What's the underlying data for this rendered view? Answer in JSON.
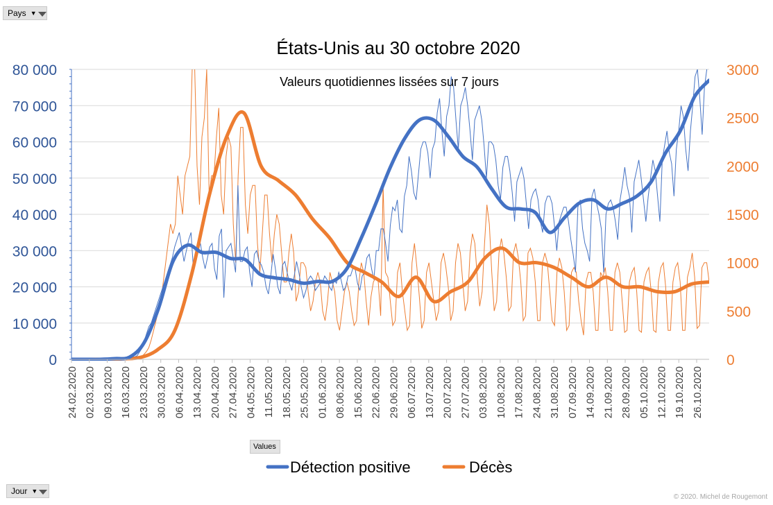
{
  "filters": {
    "pays_label": "Pays",
    "jour_label": "Jour",
    "values_label": "Values",
    "filter_icon": "funnel-icon",
    "dropdown_icon": "dropdown-arrow-icon"
  },
  "copyright": "© 2020.  Michel de Rougemont",
  "colors": {
    "detection": "#4472c4",
    "deces": "#ed7d31",
    "left_axis_text": "#2f5597",
    "right_axis_text": "#ed7d31",
    "grid": "#d9d9d9"
  },
  "chart_data": {
    "type": "line",
    "title": "États-Unis au 30 octobre 2020",
    "subtitle": "Valeurs quotidiennes lissées sur 7 jours",
    "x_tick_labels": [
      "24.02.2020",
      "02.03.2020",
      "09.03.2020",
      "16.03.2020",
      "23.03.2020",
      "30.03.2020",
      "06.04.2020",
      "13.04.2020",
      "20.04.2020",
      "27.04.2020",
      "04.05.2020",
      "11.05.2020",
      "18.05.2020",
      "25.05.2020",
      "01.06.2020",
      "08.06.2020",
      "15.06.2020",
      "22.06.2020",
      "29.06.2020",
      "06.07.2020",
      "13.07.2020",
      "20.07.2020",
      "27.07.2020",
      "03.08.2020",
      "10.08.2020",
      "17.08.2020",
      "24.08.2020",
      "31.08.2020",
      "07.09.2020",
      "14.09.2020",
      "21.09.2020",
      "28.09.2020",
      "05.10.2020",
      "12.10.2020",
      "19.10.2020",
      "26.10.2020"
    ],
    "y_left": {
      "ylim": [
        0,
        80000
      ],
      "ticks": [
        "0",
        "10 000",
        "20 000",
        "30 000",
        "40 000",
        "50 000",
        "60 000",
        "70 000",
        "80 000"
      ]
    },
    "y_right": {
      "ylim": [
        0,
        3000
      ],
      "ticks": [
        "0",
        "500",
        "1000",
        "1500",
        "2000",
        "2500",
        "3000"
      ]
    },
    "grid": true,
    "legend": {
      "placement": "bottom",
      "entries": [
        "Détection positive",
        "Décès"
      ]
    },
    "series": [
      {
        "name": "Détection positive",
        "axis": "left",
        "smoothed_weekly": [
          0,
          0,
          0,
          200,
          600,
          4500,
          14000,
          27000,
          31500,
          29500,
          29500,
          27800,
          27500,
          23500,
          22500,
          22000,
          21000,
          21500,
          21500,
          25000,
          33500,
          43000,
          53000,
          61000,
          66000,
          66000,
          61500,
          56000,
          53000,
          47000,
          42000,
          41500,
          40500,
          35000,
          39000,
          43000,
          44000,
          41500,
          43000,
          45000,
          49000,
          57000,
          63000,
          72500,
          77000
        ],
        "daily_raw": [
          0,
          0,
          0,
          0,
          0,
          0,
          0,
          0,
          0,
          0,
          0,
          0,
          0,
          0,
          0,
          0,
          0,
          0,
          0,
          0,
          0,
          0,
          0,
          0,
          100,
          300,
          500,
          700,
          1000,
          2000,
          3000,
          5000,
          7000,
          9000,
          10000,
          12000,
          14000,
          16000,
          18000,
          20000,
          22000,
          24000,
          26000,
          28000,
          31000,
          33000,
          35000,
          31000,
          27000,
          30000,
          33000,
          35000,
          25000,
          27000,
          30000,
          32000,
          28000,
          25000,
          28000,
          31000,
          32000,
          25000,
          22000,
          34000,
          36000,
          17000,
          30000,
          31000,
          32000,
          28000,
          24000,
          48000,
          27000,
          27000,
          30000,
          31000,
          24000,
          20000,
          29000,
          30000,
          27000,
          26000,
          24000,
          20000,
          18000,
          23000,
          29000,
          25000,
          20000,
          18000,
          26000,
          27000,
          24000,
          21000,
          19000,
          23000,
          27000,
          24000,
          20000,
          17000,
          19000,
          22000,
          23000,
          22000,
          19000,
          20000,
          21000,
          21000,
          23000,
          22000,
          20000,
          19000,
          22000,
          21000,
          24000,
          22000,
          19000,
          20000,
          23000,
          23000,
          25000,
          25000,
          21000,
          19000,
          23000,
          24000,
          28000,
          29000,
          25000,
          22000,
          30000,
          30000,
          36000,
          36000,
          32000,
          27000,
          37000,
          42000,
          41000,
          44000,
          36000,
          35000,
          45000,
          48000,
          56000,
          52000,
          46000,
          44000,
          51000,
          58000,
          60000,
          60000,
          57000,
          50000,
          58000,
          60000,
          68000,
          72000,
          63000,
          56000,
          67000,
          70000,
          78000,
          75000,
          66000,
          58000,
          70000,
          72000,
          75000,
          70000,
          63000,
          55000,
          66000,
          68000,
          70000,
          66000,
          59000,
          50000,
          60000,
          60000,
          59000,
          55000,
          48000,
          44000,
          53000,
          56000,
          56000,
          52000,
          46000,
          38000,
          49000,
          51000,
          53000,
          50000,
          43000,
          36000,
          44000,
          46000,
          47000,
          44000,
          38000,
          35000,
          43000,
          45000,
          45000,
          43000,
          37000,
          30000,
          38000,
          40000,
          42000,
          42000,
          38000,
          33000,
          29000,
          24000,
          42000,
          44000,
          36000,
          32000,
          30000,
          27000,
          45000,
          47000,
          43000,
          40000,
          36000,
          24000,
          40000,
          43000,
          44000,
          42000,
          38000,
          33000,
          44000,
          48000,
          53000,
          48000,
          45000,
          35000,
          49000,
          52000,
          55000,
          50000,
          44000,
          38000,
          45000,
          50000,
          55000,
          52000,
          45000,
          38000,
          55000,
          59000,
          63000,
          57000,
          54000,
          45000,
          58000,
          63000,
          70000,
          67000,
          58000,
          52000,
          63000,
          70000,
          78000,
          80000,
          72000,
          62000,
          75000,
          80000,
          85000
        ]
      },
      {
        "name": "Décès",
        "axis": "right",
        "smoothed_weekly": [
          0,
          0,
          0,
          5,
          20,
          100,
          300,
          900,
          1700,
          2300,
          2550,
          2000,
          1850,
          1700,
          1450,
          1250,
          1000,
          900,
          800,
          650,
          850,
          600,
          700,
          800,
          1050,
          1150,
          1000,
          1000,
          950,
          850,
          750,
          850,
          750,
          750,
          700,
          700,
          780,
          800
        ],
        "daily_raw": [
          0,
          0,
          0,
          0,
          0,
          0,
          0,
          0,
          0,
          0,
          0,
          0,
          0,
          0,
          0,
          0,
          0,
          0,
          0,
          0,
          0,
          0,
          0,
          0,
          0,
          0,
          5,
          10,
          20,
          30,
          50,
          80,
          120,
          200,
          300,
          400,
          500,
          600,
          800,
          1000,
          1200,
          1400,
          1300,
          1400,
          1900,
          1700,
          1500,
          1900,
          2000,
          2100,
          3400,
          3500,
          2000,
          1600,
          2300,
          2500,
          3000,
          1700,
          1900,
          1900,
          2300,
          2600,
          1700,
          1500,
          2100,
          2300,
          2200,
          1400,
          1000,
          1900,
          2400,
          2400,
          1600,
          1300,
          1700,
          1800,
          1800,
          1200,
          900,
          1300,
          1700,
          1700,
          1300,
          1000,
          1300,
          1500,
          1400,
          1100,
          800,
          800,
          1100,
          1300,
          1100,
          600,
          700,
          1000,
          1000,
          950,
          700,
          500,
          600,
          800,
          900,
          800,
          500,
          400,
          600,
          900,
          800,
          700,
          400,
          300,
          500,
          700,
          800,
          700,
          500,
          350,
          400,
          800,
          1000,
          900,
          600,
          350,
          650,
          800,
          850,
          800,
          450,
          1800,
          900,
          850,
          600,
          350,
          400,
          900,
          1000,
          700,
          500,
          300,
          350,
          1000,
          1200,
          950,
          650,
          320,
          400,
          900,
          1000,
          800,
          600,
          400,
          500,
          1000,
          1100,
          950,
          750,
          400,
          500,
          1000,
          1200,
          1100,
          800,
          500,
          600,
          1100,
          1300,
          1200,
          850,
          550,
          700,
          1200,
          1600,
          1400,
          900,
          500,
          600,
          1100,
          1250,
          1100,
          850,
          500,
          550,
          1100,
          1200,
          1050,
          800,
          400,
          450,
          1100,
          1150,
          1050,
          800,
          400,
          400,
          1000,
          1100,
          1000,
          700,
          400,
          350,
          900,
          1050,
          950,
          700,
          300,
          350,
          900,
          950,
          900,
          600,
          400,
          250,
          800,
          900,
          900,
          700,
          300,
          300,
          900,
          850,
          950,
          700,
          300,
          300,
          900,
          1000,
          900,
          600,
          280,
          300,
          800,
          900,
          950,
          700,
          300,
          280,
          800,
          900,
          950,
          700,
          300,
          280,
          800,
          950,
          1000,
          750,
          300,
          300,
          800,
          950,
          1000,
          800,
          300,
          300,
          850,
          950,
          1100,
          850,
          320,
          350,
          950,
          1000,
          1000,
          800
        ]
      }
    ]
  }
}
